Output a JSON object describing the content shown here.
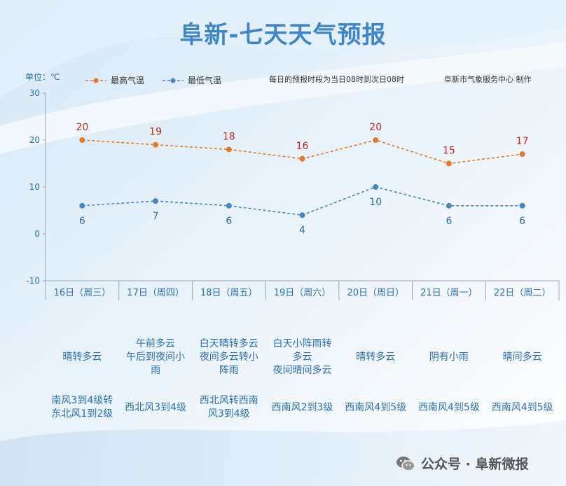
{
  "title": "阜新-七天天气预报",
  "unit_label": "单位：℃",
  "note": {
    "period": "每日的预报时段为当日08时到次日08时",
    "source": "阜新市气象服务中心 制作"
  },
  "colors": {
    "high": "#e07b2f",
    "low": "#4a86c0",
    "high_label": "#c42a1e",
    "low_label": "#2f6fa8",
    "text_blue": "#2b6fb3"
  },
  "chart_data": {
    "type": "line",
    "title": "阜新-七天天气预报",
    "ylabel": "单位：℃",
    "ylim": [
      -10,
      30
    ],
    "yticks": [
      -10,
      0,
      10,
      20,
      30
    ],
    "categories": [
      "16日（周三）",
      "17日（周四）",
      "18日（周五）",
      "19日（周六）",
      "20日（周日）",
      "21日（周一）",
      "22日（周二）"
    ],
    "series": [
      {
        "name": "最高气温",
        "values": [
          20,
          19,
          18,
          16,
          20,
          15,
          17
        ]
      },
      {
        "name": "最低气温",
        "values": [
          6,
          7,
          6,
          4,
          10,
          6,
          6
        ]
      }
    ]
  },
  "weather": [
    [
      "晴转多云"
    ],
    [
      "午前多云",
      "午后到夜间小",
      "雨"
    ],
    [
      "白天晴转多云",
      "夜间多云转小",
      "阵雨"
    ],
    [
      "白天小阵雨转",
      "多云",
      "夜间晴间多云"
    ],
    [
      "晴转多云"
    ],
    [
      "阴有小雨"
    ],
    [
      "晴间多云"
    ]
  ],
  "wind": [
    [
      "南风3到4级转",
      "东北风1到2级"
    ],
    [
      "西北风3到4级"
    ],
    [
      "西北风转西南",
      "风3到4级"
    ],
    [
      "西南风2到3级"
    ],
    [
      "西南风4到5级"
    ],
    [
      "西南风4到5级"
    ],
    [
      "西南风4到5级"
    ]
  ],
  "footer": {
    "text": "公众号 · 阜新微报",
    "icon": "wechat-icon"
  }
}
